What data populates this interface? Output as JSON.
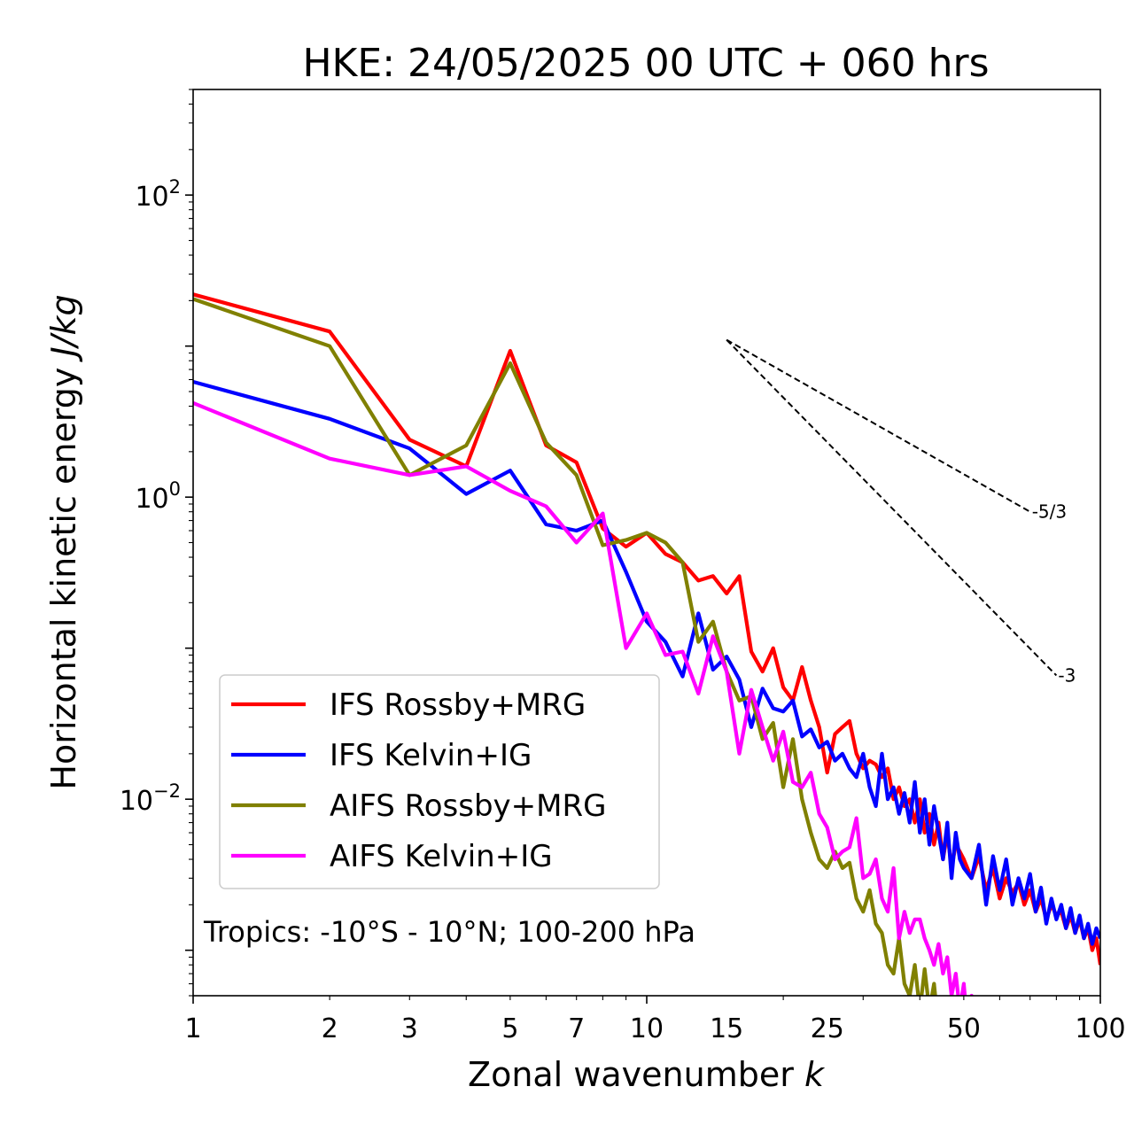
{
  "chart_data": {
    "type": "line",
    "title": "HKE: 24/05/2025 00 UTC + 060 hrs",
    "xlabel": "Zonal wavenumber",
    "xlabel_var": "k",
    "ylabel": "Horizontal kinetic energy",
    "ylabel_units": "J/kg",
    "xscale": "log",
    "yscale": "log",
    "xlim": [
      1,
      100
    ],
    "ylim": [
      0.0005,
      500
    ],
    "x_ticks": [
      1,
      2,
      3,
      5,
      7,
      10,
      15,
      25,
      50,
      100
    ],
    "x_tick_labels": [
      "1",
      "2",
      "3",
      "5",
      "7",
      "10",
      "15",
      "25",
      "50",
      "100"
    ],
    "y_ticks": [
      0.01,
      1,
      100
    ],
    "y_tick_labels": [
      {
        "mantissa": "10",
        "exponent": "−2"
      },
      {
        "mantissa": "10",
        "exponent": "0"
      },
      {
        "mantissa": "10",
        "exponent": "2"
      }
    ],
    "legend_position": "lower-left",
    "annotation": "Tropics: -10°S - 10°N; 100-200 hPa",
    "reference_slopes": [
      {
        "label": "-5/3",
        "x_start": 15,
        "y_start": 11,
        "x_end": 70,
        "y_end": 0.8
      },
      {
        "label": "-3",
        "x_start": 15,
        "y_start": 11,
        "x_end": 80,
        "y_end": 0.066
      }
    ],
    "series": [
      {
        "name": "IFS Rossby+MRG",
        "color": "#ff0000",
        "x": [
          1,
          2,
          3,
          4,
          5,
          6,
          7,
          8,
          9,
          10,
          11,
          12,
          13,
          14,
          15,
          16,
          17,
          18,
          19,
          20,
          21,
          22,
          23,
          24,
          25,
          26,
          27,
          28,
          29,
          30,
          31,
          32,
          33,
          34,
          35,
          36,
          37,
          38,
          39,
          40,
          41,
          42,
          43,
          44,
          45,
          46,
          47,
          48,
          49,
          50,
          52,
          54,
          56,
          58,
          60,
          62,
          64,
          66,
          68,
          70,
          72,
          74,
          76,
          78,
          80,
          82,
          84,
          86,
          88,
          90,
          92,
          94,
          96,
          98,
          100
        ],
        "values": [
          22,
          12.5,
          2.4,
          1.6,
          9.3,
          2.2,
          1.7,
          0.62,
          0.47,
          0.58,
          0.42,
          0.37,
          0.28,
          0.3,
          0.23,
          0.3,
          0.095,
          0.07,
          0.1,
          0.055,
          0.045,
          0.075,
          0.045,
          0.03,
          0.015,
          0.027,
          0.03,
          0.033,
          0.02,
          0.016,
          0.018,
          0.017,
          0.014,
          0.016,
          0.01,
          0.012,
          0.009,
          0.01,
          0.007,
          0.01,
          0.006,
          0.008,
          0.005,
          0.007,
          0.004,
          0.006,
          0.0035,
          0.005,
          0.0045,
          0.004,
          0.003,
          0.0042,
          0.0025,
          0.0035,
          0.0022,
          0.003,
          0.0024,
          0.0028,
          0.002,
          0.0025,
          0.0018,
          0.0022,
          0.0016,
          0.002,
          0.0017,
          0.0018,
          0.0014,
          0.0017,
          0.0013,
          0.0016,
          0.0012,
          0.0014,
          0.001,
          0.0012,
          0.0008
        ]
      },
      {
        "name": "IFS Kelvin+IG",
        "color": "#0000ff",
        "x": [
          1,
          2,
          3,
          4,
          5,
          6,
          7,
          8,
          9,
          10,
          11,
          12,
          13,
          14,
          15,
          16,
          17,
          18,
          19,
          20,
          21,
          22,
          23,
          24,
          25,
          26,
          27,
          28,
          29,
          30,
          31,
          32,
          33,
          34,
          35,
          36,
          37,
          38,
          39,
          40,
          41,
          42,
          43,
          44,
          45,
          46,
          47,
          48,
          49,
          50,
          52,
          54,
          56,
          58,
          60,
          62,
          64,
          66,
          68,
          70,
          72,
          74,
          76,
          78,
          80,
          82,
          84,
          86,
          88,
          90,
          92,
          94,
          96,
          98,
          100
        ],
        "values": [
          5.8,
          3.3,
          2.1,
          1.05,
          1.5,
          0.66,
          0.6,
          0.7,
          0.32,
          0.15,
          0.11,
          0.065,
          0.17,
          0.072,
          0.088,
          0.062,
          0.03,
          0.054,
          0.04,
          0.038,
          0.045,
          0.026,
          0.029,
          0.022,
          0.024,
          0.018,
          0.02,
          0.016,
          0.014,
          0.02,
          0.012,
          0.009,
          0.02,
          0.01,
          0.012,
          0.008,
          0.011,
          0.007,
          0.013,
          0.006,
          0.01,
          0.005,
          0.009,
          0.006,
          0.004,
          0.007,
          0.003,
          0.006,
          0.004,
          0.0035,
          0.003,
          0.005,
          0.002,
          0.0042,
          0.0025,
          0.004,
          0.002,
          0.003,
          0.0022,
          0.0032,
          0.0018,
          0.0026,
          0.0015,
          0.0022,
          0.0016,
          0.002,
          0.0014,
          0.0019,
          0.0013,
          0.0017,
          0.0012,
          0.0015,
          0.0011,
          0.0014,
          0.0012
        ]
      },
      {
        "name": "AIFS Rossby+MRG",
        "color": "#808000",
        "x": [
          1,
          2,
          3,
          4,
          5,
          6,
          7,
          8,
          9,
          10,
          11,
          12,
          13,
          14,
          15,
          16,
          17,
          18,
          19,
          20,
          21,
          22,
          23,
          24,
          25,
          26,
          27,
          28,
          29,
          30,
          31,
          32,
          33,
          34,
          35,
          36,
          37,
          38,
          39,
          40,
          41,
          42,
          43,
          44,
          45,
          46,
          47,
          48
        ],
        "values": [
          20.5,
          10,
          1.4,
          2.2,
          7.7,
          2.3,
          1.4,
          0.48,
          0.52,
          0.58,
          0.5,
          0.37,
          0.11,
          0.15,
          0.07,
          0.045,
          0.048,
          0.025,
          0.032,
          0.012,
          0.025,
          0.01,
          0.006,
          0.004,
          0.0035,
          0.0045,
          0.0035,
          0.0038,
          0.0022,
          0.0018,
          0.0025,
          0.0015,
          0.0013,
          0.0008,
          0.0007,
          0.0012,
          0.0006,
          0.0005,
          0.0008,
          0.0004,
          0.00075,
          0.0004,
          0.0006,
          0.0003,
          0.00045,
          0.00025,
          0.0004,
          0.0002
        ]
      },
      {
        "name": "AIFS Kelvin+IG",
        "color": "#ff00ff",
        "x": [
          1,
          2,
          3,
          4,
          5,
          6,
          7,
          8,
          9,
          10,
          11,
          12,
          13,
          14,
          15,
          16,
          17,
          18,
          19,
          20,
          21,
          22,
          23,
          24,
          25,
          26,
          27,
          28,
          29,
          30,
          31,
          32,
          33,
          34,
          35,
          36,
          37,
          38,
          39,
          40,
          41,
          42,
          43,
          44,
          45,
          46,
          47,
          48,
          49,
          50,
          51,
          52,
          53,
          54,
          55,
          56,
          57,
          58
        ],
        "values": [
          4.2,
          1.8,
          1.4,
          1.6,
          1.1,
          0.87,
          0.5,
          0.78,
          0.1,
          0.17,
          0.09,
          0.095,
          0.05,
          0.12,
          0.07,
          0.02,
          0.053,
          0.03,
          0.018,
          0.028,
          0.013,
          0.012,
          0.015,
          0.008,
          0.0065,
          0.004,
          0.0045,
          0.0048,
          0.0075,
          0.003,
          0.0032,
          0.004,
          0.0022,
          0.0018,
          0.0035,
          0.0012,
          0.0018,
          0.0013,
          0.0016,
          0.0016,
          0.0012,
          0.001,
          0.0008,
          0.0011,
          0.0007,
          0.0009,
          0.0005,
          0.0007,
          0.0004,
          0.0006,
          0.0003,
          0.0005,
          0.0003,
          0.00045,
          0.0003,
          0.0004,
          0.0003,
          0.00035
        ]
      }
    ]
  }
}
